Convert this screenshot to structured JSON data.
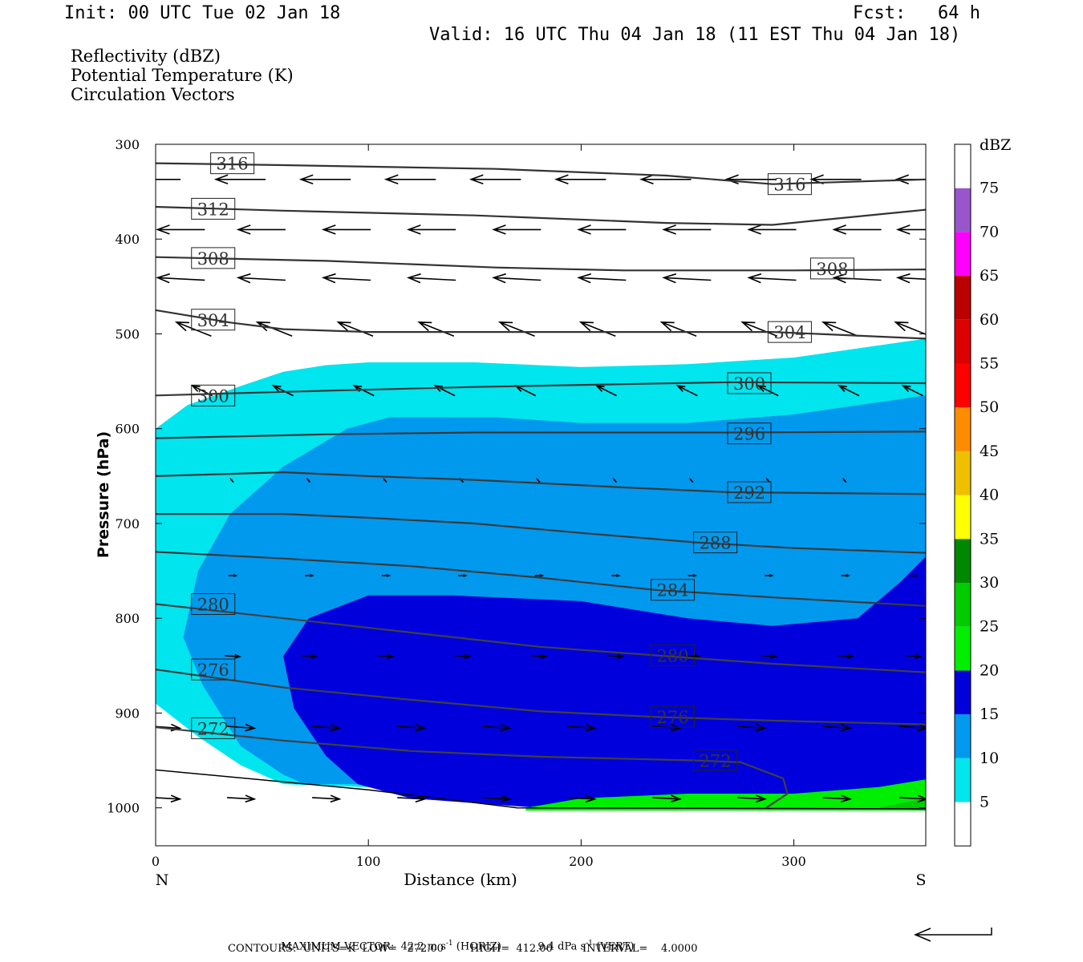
{
  "header": {
    "init": "Init: 00 UTC Tue 02 Jan 18",
    "fcst": "Fcst:   64 h",
    "valid": "Valid: 16 UTC Thu 04 Jan 18 (11 EST Thu 04 Jan 18)"
  },
  "fields": [
    {
      "label": "Reflectivity (dBZ)",
      "color": "#000000"
    },
    {
      "label": "Potential Temperature (K)",
      "color": "#808080"
    },
    {
      "label": "Circulation Vectors",
      "color": "#000000"
    }
  ],
  "footer": {
    "max_vector_label": "MAXIMUM VECTOR:",
    "horiz": "42.2 m s",
    "horiz_exp": "-1",
    "horiz_tag": "(HORIZ)",
    "vert": "9.4 dPa s",
    "vert_exp": "-1",
    "vert_tag": "(VERT)",
    "contours": "CONTOURS:  UNITS=K  LOW=   272.00        HIGH=  412.00         INTERVAL=    4.0000"
  },
  "chart_data": {
    "type": "contour cross-section",
    "xlabel": "Distance (km)",
    "ylabel": "Pressure (hPa)",
    "xlim": [
      0,
      362
    ],
    "ylim": [
      1040,
      300
    ],
    "x_ticks": [
      0,
      100,
      200,
      300
    ],
    "y_ticks": [
      300,
      400,
      500,
      600,
      700,
      800,
      900,
      1000
    ],
    "x_end_labels": {
      "left": "N",
      "right": "S"
    },
    "colorbar": {
      "title": "dBZ",
      "levels": [
        5,
        10,
        15,
        20,
        25,
        30,
        35,
        40,
        45,
        50,
        55,
        60,
        65,
        70,
        75
      ],
      "colors": [
        "#ffffff",
        "#00e5ee",
        "#0099ee",
        "#0000dd",
        "#00ee00",
        "#00cc00",
        "#008800",
        "#ffff00",
        "#eec000",
        "#ff8c00",
        "#ff0000",
        "#dd0000",
        "#bb0000",
        "#ff00ff",
        "#9955cc",
        "#ffffff"
      ]
    },
    "reflectivity_regions": [
      {
        "dbz": 5,
        "color": "#00e5ee",
        "points": [
          [
            0,
            600
          ],
          [
            15,
            575
          ],
          [
            40,
            555
          ],
          [
            60,
            540
          ],
          [
            80,
            533
          ],
          [
            100,
            530
          ],
          [
            150,
            530
          ],
          [
            200,
            535
          ],
          [
            250,
            532
          ],
          [
            300,
            525
          ],
          [
            362,
            505
          ],
          [
            362,
            1000
          ],
          [
            60,
            975
          ],
          [
            40,
            955
          ],
          [
            20,
            925
          ],
          [
            0,
            890
          ]
        ]
      },
      {
        "dbz": 10,
        "color": "#0099ee",
        "points": [
          [
            90,
            600
          ],
          [
            110,
            588
          ],
          [
            160,
            588
          ],
          [
            200,
            594
          ],
          [
            250,
            594
          ],
          [
            300,
            585
          ],
          [
            362,
            565
          ],
          [
            362,
            1000
          ],
          [
            100,
            975
          ],
          [
            70,
            975
          ],
          [
            60,
            965
          ],
          [
            40,
            935
          ],
          [
            22,
            870
          ],
          [
            13,
            820
          ],
          [
            20,
            750
          ],
          [
            35,
            690
          ],
          [
            60,
            640
          ]
        ]
      },
      {
        "dbz": 15,
        "color": "#0000dd",
        "points": [
          [
            72,
            800
          ],
          [
            100,
            776
          ],
          [
            140,
            776
          ],
          [
            200,
            782
          ],
          [
            250,
            800
          ],
          [
            290,
            808
          ],
          [
            330,
            800
          ],
          [
            350,
            762
          ],
          [
            362,
            735
          ],
          [
            362,
            1000
          ],
          [
            180,
            1000
          ],
          [
            120,
            990
          ],
          [
            95,
            975
          ],
          [
            80,
            945
          ],
          [
            65,
            895
          ],
          [
            60,
            840
          ]
        ]
      },
      {
        "dbz": 20,
        "color": "#00ee00",
        "points": [
          [
            174,
            1000
          ],
          [
            200,
            990
          ],
          [
            250,
            985
          ],
          [
            300,
            985
          ],
          [
            340,
            978
          ],
          [
            362,
            970
          ],
          [
            362,
            1003
          ],
          [
            174,
            1003
          ]
        ]
      },
      {
        "dbz": 25,
        "color": "#00cc00",
        "points": [
          [
            340,
            1000
          ],
          [
            362,
            990
          ],
          [
            362,
            1003
          ]
        ]
      }
    ],
    "theta_contours": [
      {
        "value": 316,
        "label_at": [
          [
            27,
            320
          ],
          [
            289,
            342
          ]
        ],
        "points": [
          [
            0,
            320
          ],
          [
            60,
            322
          ],
          [
            160,
            326
          ],
          [
            240,
            333
          ],
          [
            290,
            342
          ],
          [
            362,
            337
          ]
        ]
      },
      {
        "value": 312,
        "label_at": [
          [
            18,
            368
          ]
        ],
        "points": [
          [
            0,
            366
          ],
          [
            60,
            370
          ],
          [
            150,
            375
          ],
          [
            240,
            383
          ],
          [
            290,
            385
          ],
          [
            362,
            369
          ]
        ]
      },
      {
        "value": 308,
        "label_at": [
          [
            18,
            420
          ],
          [
            309,
            431
          ]
        ],
        "points": [
          [
            0,
            419
          ],
          [
            80,
            423
          ],
          [
            160,
            430
          ],
          [
            220,
            433
          ],
          [
            300,
            433
          ],
          [
            362,
            432
          ]
        ]
      },
      {
        "value": 304,
        "label_at": [
          [
            18,
            485
          ],
          [
            289,
            498
          ]
        ],
        "points": [
          [
            0,
            475
          ],
          [
            35,
            488
          ],
          [
            60,
            495
          ],
          [
            100,
            498
          ],
          [
            250,
            498
          ],
          [
            290,
            498
          ],
          [
            362,
            505
          ]
        ]
      },
      {
        "value": 300,
        "label_at": [
          [
            18,
            565
          ],
          [
            270,
            552
          ]
        ],
        "points": [
          [
            0,
            565
          ],
          [
            80,
            560
          ],
          [
            150,
            556
          ],
          [
            220,
            553
          ],
          [
            270,
            551
          ],
          [
            362,
            552
          ]
        ]
      },
      {
        "value": 296,
        "label_at": [
          [
            270,
            605
          ]
        ],
        "points": [
          [
            0,
            610
          ],
          [
            80,
            606
          ],
          [
            150,
            604
          ],
          [
            240,
            604
          ],
          [
            270,
            604
          ],
          [
            362,
            603
          ]
        ]
      },
      {
        "value": 292,
        "label_at": [
          [
            270,
            667
          ]
        ],
        "points": [
          [
            0,
            650
          ],
          [
            60,
            646
          ],
          [
            100,
            650
          ],
          [
            150,
            654
          ],
          [
            220,
            662
          ],
          [
            270,
            667
          ],
          [
            362,
            669
          ]
        ]
      },
      {
        "value": 288,
        "label_at": [
          [
            254,
            720
          ]
        ],
        "points": [
          [
            0,
            690
          ],
          [
            60,
            690
          ],
          [
            100,
            694
          ],
          [
            150,
            700
          ],
          [
            200,
            710
          ],
          [
            254,
            720
          ],
          [
            300,
            726
          ],
          [
            362,
            731
          ]
        ]
      },
      {
        "value": 284,
        "label_at": [
          [
            234,
            770
          ]
        ],
        "points": [
          [
            0,
            730
          ],
          [
            60,
            737
          ],
          [
            120,
            745
          ],
          [
            180,
            757
          ],
          [
            234,
            770
          ],
          [
            290,
            778
          ],
          [
            362,
            787
          ]
        ]
      },
      {
        "value": 280,
        "label_at": [
          [
            18,
            785
          ],
          [
            234,
            839
          ]
        ],
        "points": [
          [
            0,
            785
          ],
          [
            60,
            800
          ],
          [
            120,
            815
          ],
          [
            180,
            830
          ],
          [
            234,
            839
          ],
          [
            290,
            848
          ],
          [
            362,
            857
          ]
        ]
      },
      {
        "value": 276,
        "label_at": [
          [
            18,
            854
          ],
          [
            234,
            904
          ]
        ],
        "points": [
          [
            0,
            854
          ],
          [
            60,
            873
          ],
          [
            120,
            886
          ],
          [
            180,
            898
          ],
          [
            234,
            904
          ],
          [
            290,
            908
          ],
          [
            362,
            912
          ]
        ]
      },
      {
        "value": 272,
        "label_at": [
          [
            18,
            916
          ],
          [
            254,
            950
          ]
        ],
        "points": [
          [
            0,
            915
          ],
          [
            60,
            929
          ],
          [
            120,
            940
          ],
          [
            180,
            946
          ],
          [
            254,
            950
          ],
          [
            275,
            952
          ],
          [
            295,
            969
          ],
          [
            297,
            985
          ],
          [
            287,
            1000
          ]
        ]
      }
    ],
    "terrain_line": [
      [
        0,
        960
      ],
      [
        100,
        981
      ],
      [
        170,
        1000
      ],
      [
        362,
        1001
      ]
    ]
  }
}
